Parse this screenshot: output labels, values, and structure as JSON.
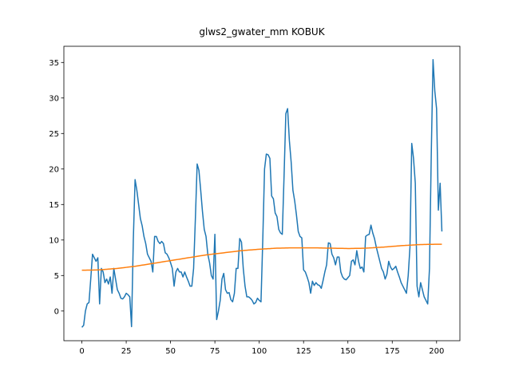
{
  "chart_data": {
    "type": "line",
    "title": "glws2_gwater_mm KOBUK",
    "x": [
      0,
      1,
      2,
      3,
      4,
      5,
      6,
      7,
      8,
      9,
      10,
      11,
      12,
      13,
      14,
      15,
      16,
      17,
      18,
      19,
      20,
      21,
      22,
      23,
      24,
      25,
      26,
      27,
      28,
      29,
      30,
      31,
      32,
      33,
      34,
      35,
      36,
      37,
      38,
      39,
      40,
      41,
      42,
      43,
      44,
      45,
      46,
      47,
      48,
      49,
      50,
      51,
      52,
      53,
      54,
      55,
      56,
      57,
      58,
      59,
      60,
      61,
      62,
      63,
      64,
      65,
      66,
      67,
      68,
      69,
      70,
      71,
      72,
      73,
      74,
      75,
      76,
      77,
      78,
      79,
      80,
      81,
      82,
      83,
      84,
      85,
      86,
      87,
      88,
      89,
      90,
      91,
      92,
      93,
      94,
      95,
      96,
      97,
      98,
      99,
      100,
      101,
      102,
      103,
      104,
      105,
      106,
      107,
      108,
      109,
      110,
      111,
      112,
      113,
      114,
      115,
      116,
      117,
      118,
      119,
      120,
      121,
      122,
      123,
      124,
      125,
      126,
      127,
      128,
      129,
      130,
      131,
      132,
      133,
      134,
      135,
      136,
      137,
      138,
      139,
      140,
      141,
      142,
      143,
      144,
      145,
      146,
      147,
      148,
      149,
      150,
      151,
      152,
      153,
      154,
      155,
      156,
      157,
      158,
      159,
      160,
      161,
      162,
      163,
      164,
      165,
      166,
      167,
      168,
      169,
      170,
      171,
      172,
      173,
      174,
      175,
      176,
      177,
      178,
      179,
      180,
      181,
      182,
      183,
      184,
      185,
      186,
      187,
      188,
      189,
      190,
      191,
      192,
      193,
      194,
      195,
      196,
      197,
      198,
      199,
      200,
      201,
      202,
      203
    ],
    "series": [
      {
        "color": "#1f77b4",
        "values": [
          -2.3,
          -2.0,
          0,
          1.0,
          1.2,
          4.5,
          8.0,
          7.5,
          7.0,
          7.5,
          1.0,
          6.0,
          5.5,
          4.0,
          4.5,
          3.8,
          4.8,
          2.5,
          6.0,
          4.5,
          3.0,
          2.5,
          1.8,
          1.7,
          2.0,
          2.5,
          2.3,
          2.0,
          -2.2,
          10.0,
          18.5,
          17.0,
          15.0,
          13.0,
          12.0,
          10.5,
          9.5,
          8.0,
          7.5,
          7.0,
          5.5,
          10.5,
          10.5,
          9.8,
          9.5,
          9.8,
          9.5,
          8.2,
          8.0,
          7.5,
          6.8,
          6.0,
          3.5,
          5.5,
          6.0,
          5.5,
          5.5,
          4.8,
          5.5,
          4.8,
          4.2,
          3.5,
          3.5,
          6.0,
          13.0,
          20.7,
          19.8,
          17.0,
          14.0,
          11.5,
          10.5,
          8.0,
          6.8,
          5.0,
          4.5,
          10.8,
          -1.2,
          0.0,
          1.5,
          4.5,
          5.3,
          3.0,
          2.5,
          2.6,
          1.6,
          1.3,
          2.5,
          6.0,
          6.0,
          10.2,
          9.7,
          6.0,
          3.5,
          2.0,
          2.0,
          1.8,
          1.5,
          1.0,
          1.2,
          1.8,
          1.5,
          1.3,
          10.0,
          20.0,
          22.1,
          22.0,
          21.5,
          16.2,
          15.8,
          13.8,
          13.3,
          11.5,
          11.0,
          10.8,
          19.0,
          27.8,
          28.5,
          24.0,
          21.0,
          17.0,
          15.5,
          13.5,
          11.2,
          10.5,
          10.3,
          5.8,
          5.5,
          4.8,
          4.0,
          2.5,
          4.2,
          3.6,
          4.0,
          3.7,
          3.6,
          3.2,
          4.3,
          5.5,
          6.5,
          9.6,
          9.5,
          8.0,
          7.5,
          6.5,
          7.6,
          7.6,
          5.5,
          4.8,
          4.5,
          4.4,
          4.7,
          5.0,
          7.0,
          7.2,
          6.5,
          8.5,
          7.0,
          6.0,
          6.2,
          5.5,
          10.5,
          10.7,
          10.8,
          12.1,
          11.0,
          10.2,
          9.0,
          8.0,
          7.0,
          6.0,
          5.5,
          4.5,
          5.2,
          7.0,
          6.2,
          5.8,
          6.0,
          6.3,
          5.5,
          4.8,
          4.0,
          3.5,
          3.0,
          2.5,
          5.0,
          9.0,
          23.6,
          21.5,
          18.0,
          3.5,
          2.0,
          4.0,
          3.0,
          2.0,
          1.5,
          1.0,
          6.0,
          22.0,
          35.4,
          31.0,
          28.5,
          14.2,
          18.0,
          11.2
        ]
      },
      {
        "color": "#ff7f0e",
        "values": [
          5.75,
          5.75,
          5.75,
          5.76,
          5.76,
          5.76,
          5.77,
          5.78,
          5.78,
          5.79,
          5.8,
          5.82,
          5.84,
          5.86,
          5.88,
          5.9,
          5.92,
          5.94,
          5.96,
          5.98,
          6.0,
          6.03,
          6.06,
          6.09,
          6.12,
          6.15,
          6.18,
          6.21,
          6.24,
          6.27,
          6.3,
          6.34,
          6.38,
          6.42,
          6.46,
          6.5,
          6.54,
          6.58,
          6.62,
          6.66,
          6.7,
          6.74,
          6.78,
          6.82,
          6.86,
          6.9,
          6.94,
          6.98,
          7.02,
          7.06,
          7.1,
          7.14,
          7.18,
          7.22,
          7.26,
          7.3,
          7.34,
          7.38,
          7.42,
          7.46,
          7.5,
          7.54,
          7.58,
          7.62,
          7.66,
          7.7,
          7.74,
          7.78,
          7.82,
          7.86,
          7.9,
          7.93,
          7.96,
          7.99,
          8.02,
          8.05,
          8.08,
          8.11,
          8.14,
          8.17,
          8.2,
          8.23,
          8.26,
          8.29,
          8.32,
          8.35,
          8.38,
          8.41,
          8.44,
          8.47,
          8.5,
          8.52,
          8.54,
          8.56,
          8.58,
          8.6,
          8.62,
          8.64,
          8.66,
          8.68,
          8.7,
          8.72,
          8.73,
          8.75,
          8.76,
          8.78,
          8.79,
          8.81,
          8.82,
          8.84,
          8.85,
          8.86,
          8.86,
          8.87,
          8.87,
          8.88,
          8.88,
          8.89,
          8.89,
          8.9,
          8.9,
          8.9,
          8.9,
          8.9,
          8.9,
          8.9,
          8.9,
          8.9,
          8.9,
          8.9,
          8.9,
          8.9,
          8.89,
          8.89,
          8.88,
          8.88,
          8.87,
          8.87,
          8.86,
          8.86,
          8.85,
          8.85,
          8.84,
          8.84,
          8.83,
          8.83,
          8.82,
          8.82,
          8.81,
          8.81,
          8.8,
          8.8,
          8.81,
          8.81,
          8.82,
          8.82,
          8.83,
          8.83,
          8.84,
          8.84,
          8.85,
          8.87,
          8.88,
          8.9,
          8.91,
          8.93,
          8.94,
          8.96,
          8.97,
          8.99,
          9.0,
          9.02,
          9.04,
          9.06,
          9.08,
          9.1,
          9.12,
          9.14,
          9.16,
          9.18,
          9.2,
          9.22,
          9.23,
          9.25,
          9.26,
          9.28,
          9.29,
          9.31,
          9.32,
          9.34,
          9.35,
          9.36,
          9.36,
          9.37,
          9.37,
          9.38,
          9.38,
          9.39,
          9.39,
          9.4,
          9.4,
          9.4,
          9.4,
          9.4
        ]
      }
    ],
    "xlim": [
      -10.15,
      213.15
    ],
    "xticks": [
      0,
      25,
      50,
      75,
      100,
      125,
      150,
      175,
      200
    ],
    "ylim": [
      -4.18,
      37.28
    ],
    "yticks": [
      0,
      5,
      10,
      15,
      20,
      25,
      30,
      35
    ],
    "grid": false
  }
}
